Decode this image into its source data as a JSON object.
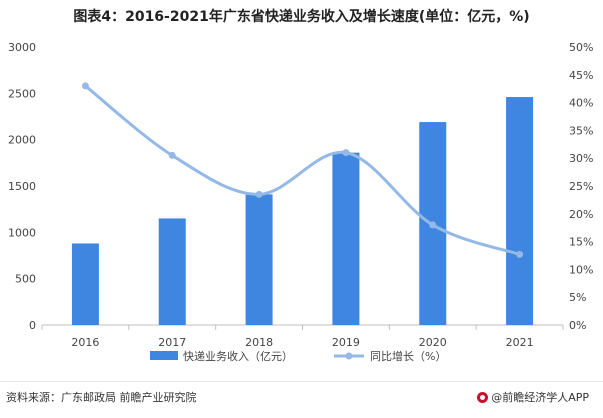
{
  "title": "图表4：2016-2021年广东省快递业务收入及增长速度(单位：亿元，%)",
  "source": "资料来源：广东邮政局 前瞻产业研究院",
  "brand": "@前瞻经济学人APP",
  "colors": {
    "bar": "#3f86e0",
    "line": "#94b9e6",
    "axis": "#bfbfbf",
    "text": "#333333"
  },
  "chart_data": {
    "type": "bar+line",
    "categories": [
      "2016",
      "2017",
      "2018",
      "2019",
      "2020",
      "2021"
    ],
    "series": [
      {
        "name": "快递业务收入（亿元）",
        "type": "bar",
        "axis": "left",
        "values": [
          880,
          1150,
          1410,
          1860,
          2190,
          2460
        ]
      },
      {
        "name": "同比增长（%）",
        "type": "line",
        "axis": "right",
        "values": [
          43,
          30.5,
          23.5,
          31,
          18,
          12.7
        ]
      }
    ],
    "y_left": {
      "ylim": [
        0,
        3000
      ],
      "ticks": [
        "0",
        "500",
        "1000",
        "1500",
        "2000",
        "2500",
        "3000"
      ]
    },
    "y_right": {
      "ylim": [
        0,
        50
      ],
      "ticks": [
        "0%",
        "5%",
        "10%",
        "15%",
        "20%",
        "25%",
        "30%",
        "35%",
        "40%",
        "45%",
        "50%"
      ]
    },
    "legend_position": "bottom",
    "grid": false
  }
}
